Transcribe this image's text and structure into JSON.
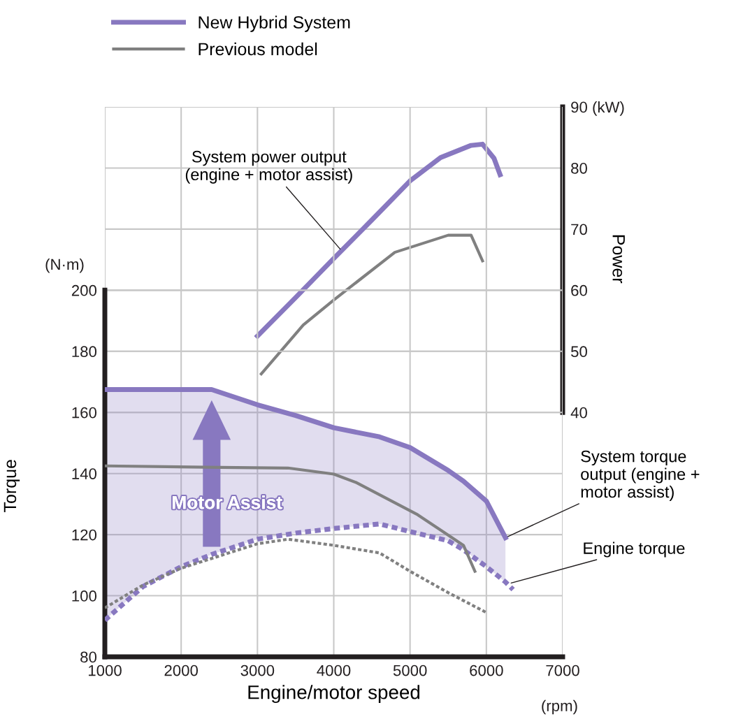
{
  "chart_data": {
    "type": "line",
    "xlabel": "Engine/motor speed",
    "ylabel": "Torque",
    "y2label": "Power",
    "xlim": [
      1000,
      7000
    ],
    "xticks": [
      1000,
      2000,
      3000,
      4000,
      5000,
      6000,
      7000
    ],
    "ylim": [
      80,
      260
    ],
    "yticks": [
      80,
      100,
      120,
      140,
      160,
      180,
      200
    ],
    "y2lim": [
      0,
      90
    ],
    "y2ticks": [
      40,
      50,
      60,
      70,
      80,
      {
        "value": 90,
        "label": "90 (kW)"
      }
    ],
    "grid": true,
    "legend": "top left",
    "series": [
      {
        "name": "New Hybrid System",
        "color": "#8878c0",
        "line_style": "solid",
        "x": [
          1000,
          1500,
          2000,
          2400,
          3000,
          3500,
          4000,
          4600,
          5000,
          5500,
          5700,
          6000,
          6250
        ],
        "values": [
          167.5,
          167.5,
          167.5,
          167.5,
          162.5,
          159,
          155,
          152,
          148.5,
          141,
          137.5,
          131,
          119
        ],
        "lower": [
          92,
          103,
          109.5,
          113.5,
          118.5,
          120.5,
          122,
          123.5,
          121,
          118,
          115,
          109.5,
          104.5
        ],
        "upper": [
          167.5,
          167.5,
          167.5,
          167.5,
          162.5,
          159,
          155,
          152,
          148.5,
          141,
          137.5,
          131,
          119
        ]
      },
      {
        "color": "#8878c0",
        "line_style": "dotted",
        "x": [
          1000,
          1500,
          2000,
          2400,
          3000,
          3500,
          4000,
          4600,
          5000,
          5500,
          5700,
          6000,
          6250,
          6350
        ],
        "values": [
          92,
          103,
          109.5,
          113.5,
          118.5,
          120.5,
          122,
          123.5,
          121,
          118,
          115,
          109.5,
          104.5,
          102
        ]
      },
      {
        "color": "#8878c0",
        "line_style": "solid",
        "axis": "y2",
        "x": [
          3000,
          3500,
          4000,
          4500,
          5000,
          5400,
          5800,
          5950,
          6100,
          6180
        ],
        "values": [
          52.5,
          58.8,
          65.2,
          71.5,
          77.9,
          81.7,
          83.7,
          83.9,
          81.6,
          78.9
        ]
      },
      {
        "name": "Previous model",
        "color": "#808080",
        "line_style": "solid",
        "x": [
          1000,
          2500,
          3400,
          4000,
          4300,
          5100,
          5700,
          5850
        ],
        "values": [
          142.5,
          142,
          141.8,
          139.8,
          137,
          126.5,
          116.5,
          108
        ]
      },
      {
        "color": "#808080",
        "line_style": "dotted",
        "x": [
          1000,
          1500,
          2000,
          2500,
          3000,
          3400,
          4000,
          4600,
          5000,
          5500,
          6000
        ],
        "values": [
          96,
          103.5,
          109,
          113,
          117,
          118.5,
          116.5,
          114,
          108,
          101,
          94.5
        ]
      },
      {
        "color": "#808080",
        "line_style": "solid",
        "axis": "y2",
        "x": [
          3050,
          3600,
          4000,
          4800,
          5300,
          5500,
          5800,
          5950
        ],
        "values": [
          46.3,
          54.3,
          58.4,
          66.2,
          68.2,
          69,
          69,
          64.8
        ]
      }
    ],
    "annotations": [
      {
        "text": "System torque\noutput (engine +\nmotor assist)",
        "x": 6250,
        "y": 119
      },
      {
        "text": "Engine torque",
        "x": 6300,
        "y": 104
      },
      {
        "text": "System power output\n(engine + motor assist)",
        "x": 4100,
        "y": 213
      },
      "Motor Assist",
      "(N·m)",
      "(rpm)"
    ]
  }
}
